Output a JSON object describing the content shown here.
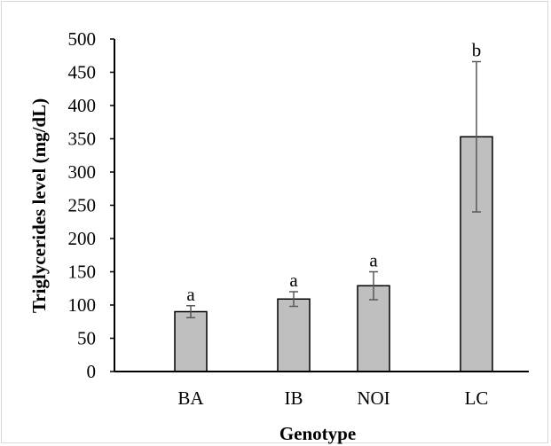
{
  "chart_data": {
    "type": "bar",
    "categories": [
      "BA",
      "IB",
      "NOI",
      "LC"
    ],
    "values": [
      90,
      109,
      129,
      353
    ],
    "error": [
      9,
      11,
      21,
      113
    ],
    "significance": [
      "a",
      "a",
      "a",
      "b"
    ],
    "xlabel": "Genotype",
    "ylabel": "Triglycerides level (mg/dL)",
    "ylim": [
      0,
      500
    ],
    "yticks": [
      "0",
      "50",
      "100",
      "150",
      "200",
      "250",
      "300",
      "350",
      "400",
      "450",
      "500"
    ],
    "grid": false,
    "legend": "none",
    "bar_color": "#bfbfbf",
    "bar_edge_color": "#000000",
    "error_bar_color": "#595959"
  }
}
